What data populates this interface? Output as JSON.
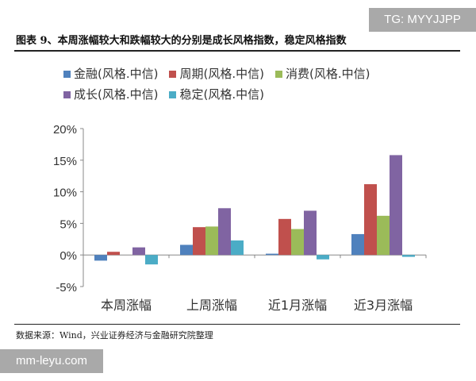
{
  "watermarks": {
    "top": "TG: MYYJJPP",
    "bottom": "mm-leyu.com"
  },
  "title": "图表 9、本周涨幅较大和跌幅较大的分别是成长风格指数，稳定风格指数",
  "source": "数据来源：Wind，兴业证券经济与金融研究院整理",
  "chart_data": {
    "type": "bar",
    "categories": [
      "本周涨幅",
      "上周涨幅",
      "近1月涨幅",
      "近3月涨幅"
    ],
    "series": [
      {
        "name": "金融(风格.中信)",
        "color": "#4f81bd",
        "values": [
          -0.9,
          1.6,
          0.2,
          3.3
        ]
      },
      {
        "name": "周期(风格.中信)",
        "color": "#c0504d",
        "values": [
          0.5,
          4.4,
          5.7,
          11.2
        ]
      },
      {
        "name": "消费(风格.中信)",
        "color": "#9bbb59",
        "values": [
          0.0,
          4.5,
          4.1,
          6.2
        ]
      },
      {
        "name": "成长(风格.中信)",
        "color": "#8064a2",
        "values": [
          1.2,
          7.4,
          7.0,
          15.8
        ]
      },
      {
        "name": "稳定(风格.中信)",
        "color": "#4bacc6",
        "values": [
          -1.5,
          2.3,
          -0.7,
          -0.3
        ]
      }
    ],
    "yticks": [
      "20%",
      "15%",
      "10%",
      "5%",
      "0%",
      "-5%"
    ],
    "ylim": [
      -5,
      20
    ],
    "legend": "top"
  }
}
